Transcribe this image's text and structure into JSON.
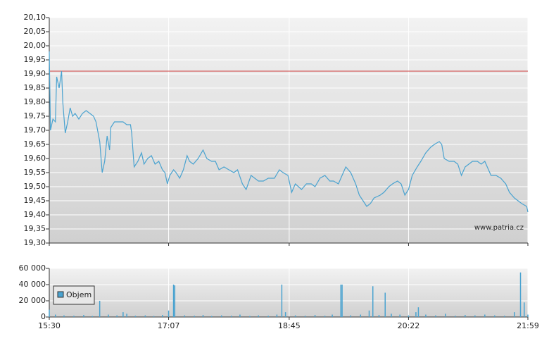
{
  "chart_data": [
    {
      "type": "line",
      "series": [
        {
          "name": "price",
          "color": "#4aa3d0",
          "x": [
            930,
            931,
            933,
            935,
            936,
            938,
            940,
            941,
            943,
            945,
            947,
            949,
            951,
            954,
            957,
            960,
            963,
            966,
            968,
            971,
            973,
            975,
            977,
            979,
            980,
            983,
            985,
            987,
            990,
            993,
            996,
            997,
            999,
            1002,
            1005,
            1007,
            1010,
            1013,
            1016,
            1019,
            1022,
            1024,
            1026,
            1028,
            1031,
            1033,
            1036,
            1039,
            1042,
            1044,
            1047,
            1051,
            1055,
            1058,
            1062,
            1065,
            1068,
            1072,
            1076,
            1080,
            1083,
            1087,
            1090,
            1094,
            1097,
            1100,
            1104,
            1108,
            1113,
            1117,
            1120,
            1124,
            1127,
            1130,
            1135,
            1139,
            1143,
            1146,
            1150,
            1154,
            1158,
            1161,
            1165,
            1168,
            1171,
            1175,
            1179,
            1182,
            1185,
            1188,
            1191,
            1194,
            1199,
            1202,
            1206,
            1209,
            1213,
            1216,
            1219,
            1222,
            1225,
            1229,
            1232,
            1236,
            1240,
            1243,
            1247,
            1249,
            1251,
            1255,
            1259,
            1262,
            1265,
            1268,
            1271,
            1274,
            1278,
            1281,
            1284,
            1286,
            1289,
            1293,
            1297,
            1301,
            1304,
            1308,
            1311,
            1314,
            1318,
            1319
          ],
          "values": [
            19.98,
            19.7,
            19.74,
            19.73,
            19.89,
            19.85,
            19.91,
            19.8,
            19.69,
            19.73,
            19.78,
            19.75,
            19.76,
            19.74,
            19.76,
            19.77,
            19.76,
            19.75,
            19.73,
            19.66,
            19.55,
            19.59,
            19.68,
            19.63,
            19.71,
            19.73,
            19.73,
            19.73,
            19.73,
            19.72,
            19.72,
            19.69,
            19.57,
            19.59,
            19.62,
            19.58,
            19.6,
            19.61,
            19.58,
            19.59,
            19.56,
            19.55,
            19.51,
            19.54,
            19.56,
            19.55,
            19.53,
            19.56,
            19.61,
            19.59,
            19.58,
            19.6,
            19.63,
            19.6,
            19.59,
            19.59,
            19.56,
            19.57,
            19.56,
            19.55,
            19.56,
            19.51,
            19.49,
            19.54,
            19.53,
            19.52,
            19.52,
            19.53,
            19.53,
            19.56,
            19.55,
            19.54,
            19.48,
            19.51,
            19.49,
            19.51,
            19.51,
            19.5,
            19.53,
            19.54,
            19.52,
            19.52,
            19.51,
            19.54,
            19.57,
            19.55,
            19.51,
            19.47,
            19.45,
            19.43,
            19.44,
            19.46,
            19.47,
            19.48,
            19.5,
            19.51,
            19.52,
            19.51,
            19.47,
            19.49,
            19.54,
            19.57,
            19.59,
            19.62,
            19.64,
            19.65,
            19.66,
            19.65,
            19.6,
            19.59,
            19.59,
            19.58,
            19.54,
            19.57,
            19.58,
            19.59,
            19.59,
            19.58,
            19.59,
            19.57,
            19.54,
            19.54,
            19.53,
            19.51,
            19.48,
            19.46,
            19.45,
            19.44,
            19.43,
            19.41
          ]
        }
      ],
      "reference_line": 19.91,
      "reference_color": "#d04040",
      "annotation": "www.patria.cz",
      "xlim": [
        930,
        1319
      ],
      "xticks": [
        930,
        1027,
        1125,
        1222,
        1319
      ],
      "ylim": [
        19.3,
        20.1
      ],
      "yticks": [
        {
          "value": 19.3,
          "label": "19,30"
        },
        {
          "value": 19.35,
          "label": "19,35"
        },
        {
          "value": 19.4,
          "label": "19,40"
        },
        {
          "value": 19.45,
          "label": "19,45"
        },
        {
          "value": 19.5,
          "label": "19,50"
        },
        {
          "value": 19.55,
          "label": "19,55"
        },
        {
          "value": 19.6,
          "label": "19,60"
        },
        {
          "value": 19.65,
          "label": "19,65"
        },
        {
          "value": 19.7,
          "label": "19,70"
        },
        {
          "value": 19.75,
          "label": "19,75"
        },
        {
          "value": 19.8,
          "label": "19,80"
        },
        {
          "value": 19.85,
          "label": "19,85"
        },
        {
          "value": 19.9,
          "label": "19,90"
        },
        {
          "value": 19.95,
          "label": "19,95"
        },
        {
          "value": 20.0,
          "label": "20,00"
        },
        {
          "value": 20.05,
          "label": "20,05"
        },
        {
          "value": 20.1,
          "label": "20,10"
        }
      ],
      "grid": true
    },
    {
      "type": "bar",
      "series": [
        {
          "name": "Objem",
          "color": "#4aa3d0",
          "x": [
            930,
            935,
            942,
            950,
            958,
            965,
            971,
            978,
            985,
            990,
            993,
            1000,
            1008,
            1015,
            1022,
            1027,
            1031,
            1032,
            1040,
            1048,
            1055,
            1062,
            1070,
            1078,
            1085,
            1093,
            1100,
            1108,
            1115,
            1119,
            1122,
            1130,
            1138,
            1146,
            1154,
            1160,
            1167,
            1168,
            1175,
            1183,
            1190,
            1193,
            1198,
            1203,
            1208,
            1215,
            1222,
            1228,
            1230,
            1236,
            1244,
            1252,
            1260,
            1268,
            1276,
            1284,
            1292,
            1300,
            1308,
            1313,
            1316,
            1319
          ],
          "values": [
            9000,
            3000,
            2000,
            1500,
            2500,
            1200,
            20000,
            3000,
            2000,
            6000,
            4000,
            1500,
            2000,
            1200,
            2500,
            8000,
            40000,
            39000,
            2000,
            1500,
            2500,
            1200,
            2000,
            1500,
            3000,
            1200,
            2000,
            1500,
            3000,
            40000,
            6000,
            2000,
            1500,
            2500,
            1500,
            3000,
            40000,
            40000,
            2000,
            3000,
            8000,
            38000,
            2500,
            30000,
            4000,
            3000,
            2000,
            6000,
            12000,
            3000,
            2000,
            4000,
            1500,
            2500,
            2000,
            3000,
            2000,
            1500,
            6000,
            55000,
            18000,
            3000
          ]
        }
      ],
      "xlim": [
        930,
        1319
      ],
      "xticks": [
        {
          "value": 930,
          "label": "15:30"
        },
        {
          "value": 1027,
          "label": "17:07"
        },
        {
          "value": 1125,
          "label": "18:45"
        },
        {
          "value": 1222,
          "label": "20:22"
        },
        {
          "value": 1319,
          "label": "21:59"
        }
      ],
      "ylim": [
        0,
        60000
      ],
      "yticks": [
        0,
        {
          "value": 20000,
          "label": "20 000"
        },
        {
          "value": 40000,
          "label": "40 000"
        },
        {
          "value": 60000,
          "label": "60 000"
        }
      ],
      "grid": true,
      "legend": "upper-left"
    }
  ]
}
